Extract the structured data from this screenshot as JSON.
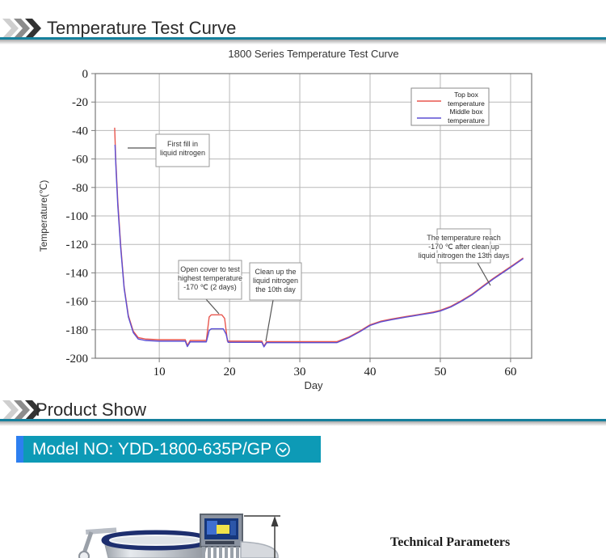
{
  "header_sections": {
    "temperature": {
      "title": "Temperature Test Curve"
    },
    "product_show": {
      "title": "Product Show"
    }
  },
  "banner": {
    "text": "Model NO: YDD-1800-635P/GP",
    "icon": "circle-chevron-down"
  },
  "product": {
    "tech_params_title": "Technical Parameters"
  },
  "colors": {
    "teal_line": "#15809c",
    "banner_bg": "#0d9ab6",
    "banner_accent": "#2d7ff0",
    "series_top_box": "#e8564e",
    "series_middle_box": "#5b4fd4",
    "grid": "#b8b8b8",
    "frame": "#7a7a7a"
  },
  "chart_data": {
    "type": "line",
    "title": "1800 Series Temperature Test Curve",
    "xlabel": "Day",
    "ylabel": "Temperature(℃)",
    "xlim": [
      1,
      63
    ],
    "ylim": [
      -200,
      0
    ],
    "xticks": [
      10,
      20,
      30,
      40,
      50,
      60
    ],
    "yticks": [
      0,
      -20,
      -40,
      -60,
      -80,
      -100,
      -120,
      -140,
      -160,
      -180,
      -200
    ],
    "grid": true,
    "legend": {
      "position": "top-right",
      "entries": [
        {
          "label": "Top box temperature",
          "lines": [
            "Top box",
            "temperature"
          ],
          "color": "#e8564e"
        },
        {
          "label": "Middle box temperature",
          "lines": [
            "Middle box",
            "temperature"
          ],
          "color": "#5b4fd4"
        }
      ]
    },
    "series": [
      {
        "name": "Top box temperature",
        "color": "#e8564e",
        "points": [
          [
            3.65,
            -38
          ],
          [
            3.8,
            -60
          ],
          [
            4.1,
            -90
          ],
          [
            4.5,
            -120
          ],
          [
            5,
            -150
          ],
          [
            5.6,
            -170
          ],
          [
            6.3,
            -181
          ],
          [
            7,
            -185.5
          ],
          [
            8,
            -186.5
          ],
          [
            10,
            -187
          ],
          [
            13.7,
            -187
          ],
          [
            14.0,
            -191
          ],
          [
            14.4,
            -187.5
          ],
          [
            16.7,
            -187.5
          ],
          [
            17.1,
            -171
          ],
          [
            17.4,
            -169.5
          ],
          [
            18.9,
            -169.5
          ],
          [
            19.3,
            -172
          ],
          [
            19.7,
            -188
          ],
          [
            21,
            -188
          ],
          [
            24.6,
            -188
          ],
          [
            24.9,
            -191.5
          ],
          [
            25.3,
            -188.3
          ],
          [
            28,
            -188.3
          ],
          [
            32,
            -188.3
          ],
          [
            35.3,
            -188.3
          ],
          [
            37,
            -185
          ],
          [
            38.5,
            -181
          ],
          [
            40,
            -176.5
          ],
          [
            41.5,
            -174
          ],
          [
            43,
            -172.5
          ],
          [
            45,
            -170.8
          ],
          [
            47,
            -169.2
          ],
          [
            49,
            -167.5
          ],
          [
            50,
            -166.3
          ],
          [
            51.5,
            -163.5
          ],
          [
            53,
            -159.5
          ],
          [
            54.5,
            -155
          ],
          [
            56,
            -149.5
          ],
          [
            57.5,
            -144
          ],
          [
            59,
            -139
          ],
          [
            60.5,
            -134
          ],
          [
            61.8,
            -129.5
          ]
        ]
      },
      {
        "name": "Middle box temperature",
        "color": "#5b4fd4",
        "points": [
          [
            3.7,
            -50
          ],
          [
            3.85,
            -68
          ],
          [
            4.1,
            -93
          ],
          [
            4.5,
            -122
          ],
          [
            5,
            -151
          ],
          [
            5.6,
            -171
          ],
          [
            6.3,
            -182
          ],
          [
            7,
            -186.5
          ],
          [
            8,
            -187.5
          ],
          [
            10,
            -188
          ],
          [
            13.7,
            -188
          ],
          [
            14.0,
            -191.8
          ],
          [
            14.4,
            -188.5
          ],
          [
            16.7,
            -188.5
          ],
          [
            17.1,
            -180.5
          ],
          [
            17.4,
            -179.3
          ],
          [
            19.1,
            -179.3
          ],
          [
            19.5,
            -183
          ],
          [
            19.8,
            -188.8
          ],
          [
            21,
            -188.8
          ],
          [
            24.6,
            -188.8
          ],
          [
            24.9,
            -192
          ],
          [
            25.3,
            -189
          ],
          [
            28,
            -189
          ],
          [
            32,
            -189
          ],
          [
            35.3,
            -189
          ],
          [
            37,
            -185.5
          ],
          [
            38.5,
            -181.5
          ],
          [
            40,
            -177
          ],
          [
            41.5,
            -174.5
          ],
          [
            43,
            -173
          ],
          [
            45,
            -171.2
          ],
          [
            47,
            -169.6
          ],
          [
            49,
            -168
          ],
          [
            50,
            -166.8
          ],
          [
            51.5,
            -164
          ],
          [
            53,
            -160
          ],
          [
            54.5,
            -155.5
          ],
          [
            56,
            -150
          ],
          [
            57.5,
            -144.5
          ],
          [
            59,
            -139.5
          ],
          [
            60.5,
            -134.5
          ],
          [
            61.8,
            -130
          ]
        ]
      }
    ],
    "annotations": [
      {
        "lines": [
          "First fill in",
          "liquid nitrogen"
        ]
      },
      {
        "lines": [
          "Open cover to test",
          "highest temperature",
          "-170 ℃ (2 days)"
        ]
      },
      {
        "lines": [
          "Clean up the",
          "liquid nitrogen",
          "the 10th day"
        ]
      },
      {
        "lines": [
          "The temperature reach",
          "-170 ℃ after clean up",
          "liquid nitrogen the 13th days"
        ]
      }
    ]
  }
}
